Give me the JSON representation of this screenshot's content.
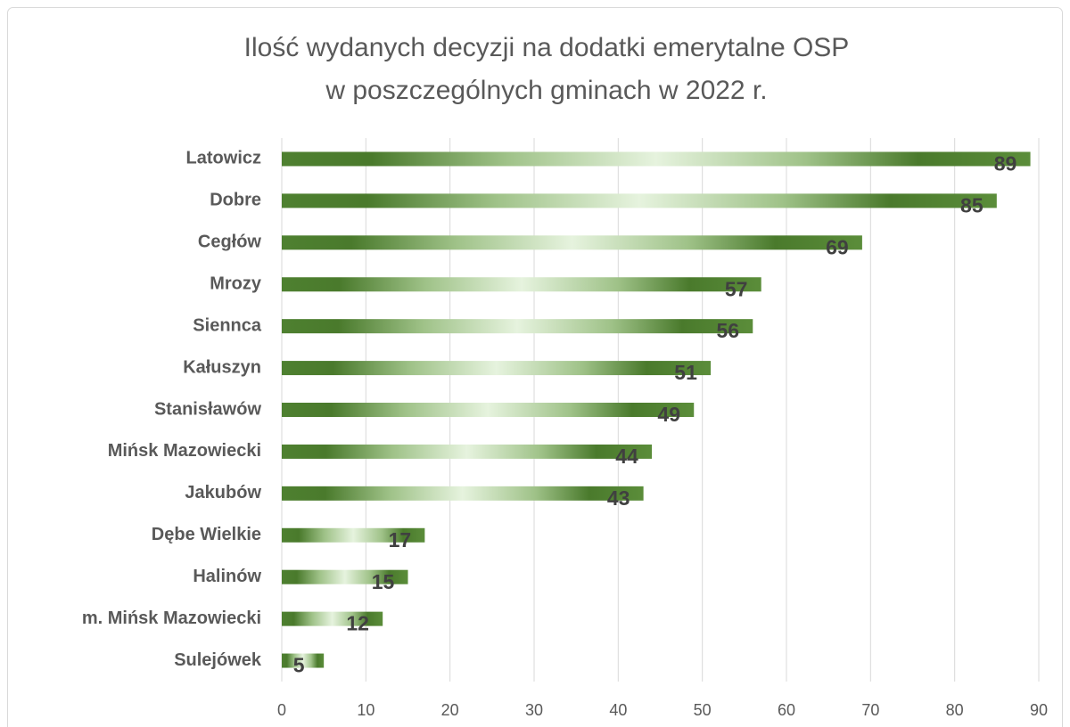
{
  "chart_data": {
    "type": "bar",
    "orientation": "horizontal",
    "title": [
      "Ilość wydanych decyzji na dodatki emerytalne OSP",
      "w poszczególnych gminach w 2022 r."
    ],
    "categories": [
      "Latowicz",
      "Dobre",
      "Cegłów",
      "Mrozy",
      "Siennca",
      "Kałuszyn",
      "Stanisławów",
      "Mińsk Mazowiecki",
      "Jakubów",
      "Dębe Wielkie",
      "Halinów",
      "m. Mińsk Mazowiecki",
      "Sulejówek"
    ],
    "values": [
      89,
      85,
      69,
      57,
      56,
      51,
      49,
      44,
      43,
      17,
      15,
      12,
      5
    ],
    "color": "#4e8030",
    "xlim": [
      0,
      90
    ],
    "xticks": [
      0,
      10,
      20,
      30,
      40,
      50,
      60,
      70,
      80,
      90
    ],
    "grid": true
  }
}
